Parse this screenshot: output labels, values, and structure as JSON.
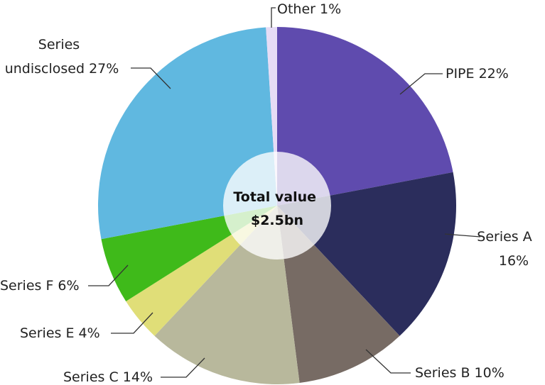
{
  "chart_data": {
    "type": "pie",
    "slices": [
      {
        "label_lines": [
          "PIPE 22%"
        ],
        "value": 22,
        "color": "#5f4bae"
      },
      {
        "label_lines": [
          "Series A",
          "16%"
        ],
        "value": 16,
        "color": "#2b2d5c"
      },
      {
        "label_lines": [
          "Series B 10%"
        ],
        "value": 10,
        "color": "#776b64"
      },
      {
        "label_lines": [
          "Series C 14%"
        ],
        "value": 14,
        "color": "#b8b89c"
      },
      {
        "label_lines": [
          "Series E 4%"
        ],
        "value": 4,
        "color": "#e0de78"
      },
      {
        "label_lines": [
          "Series F 6%"
        ],
        "value": 6,
        "color": "#3fba1a"
      },
      {
        "label_lines": [
          "Series",
          "undisclosed 27%"
        ],
        "value": 27,
        "color": "#60b8e0"
      },
      {
        "label_lines": [
          "Other 1%"
        ],
        "value": 1,
        "color": "#e6dcf5"
      }
    ],
    "center_label": [
      "Total value",
      "$2.5bn"
    ]
  }
}
